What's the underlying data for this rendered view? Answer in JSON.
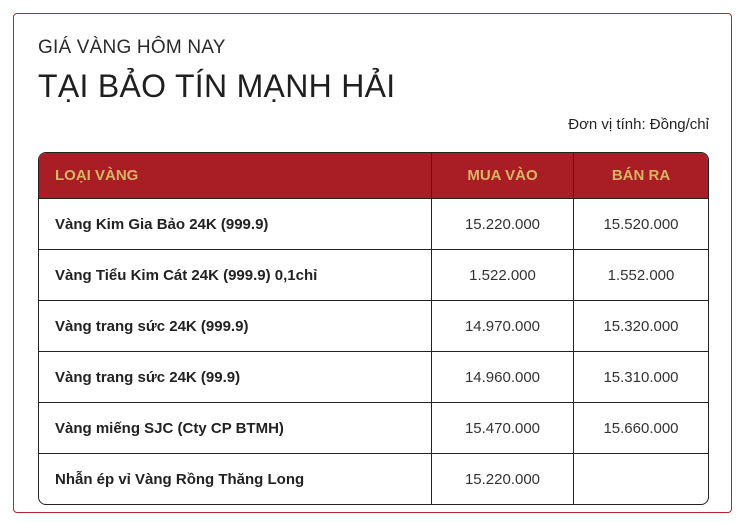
{
  "header": {
    "subtitle": "GIÁ VÀNG HÔM NAY",
    "title": "TẠI BẢO TÍN MẠNH HẢI",
    "unit": "Đơn vị tính: Đồng/chỉ"
  },
  "colors": {
    "header_bg": "#a81e24",
    "header_text": "#d8b565",
    "border": "#b3262b"
  },
  "table": {
    "columns": [
      "LOẠI VÀNG",
      "MUA VÀO",
      "BÁN RA"
    ],
    "rows": [
      [
        "Vàng Kim Gia Bảo 24K (999.9)",
        "15.220.000",
        "15.520.000"
      ],
      [
        "Vàng Tiểu Kim Cát 24K (999.9) 0,1chỉ",
        "1.522.000",
        "1.552.000"
      ],
      [
        "Vàng trang sức 24K (999.9)",
        "14.970.000",
        "15.320.000"
      ],
      [
        "Vàng trang sức 24K (99.9)",
        "14.960.000",
        "15.310.000"
      ],
      [
        "Vàng miếng SJC (Cty CP BTMH)",
        "15.470.000",
        "15.660.000"
      ],
      [
        "Nhẫn ép vỉ Vàng Rồng Thăng Long",
        "15.220.000",
        ""
      ]
    ]
  }
}
